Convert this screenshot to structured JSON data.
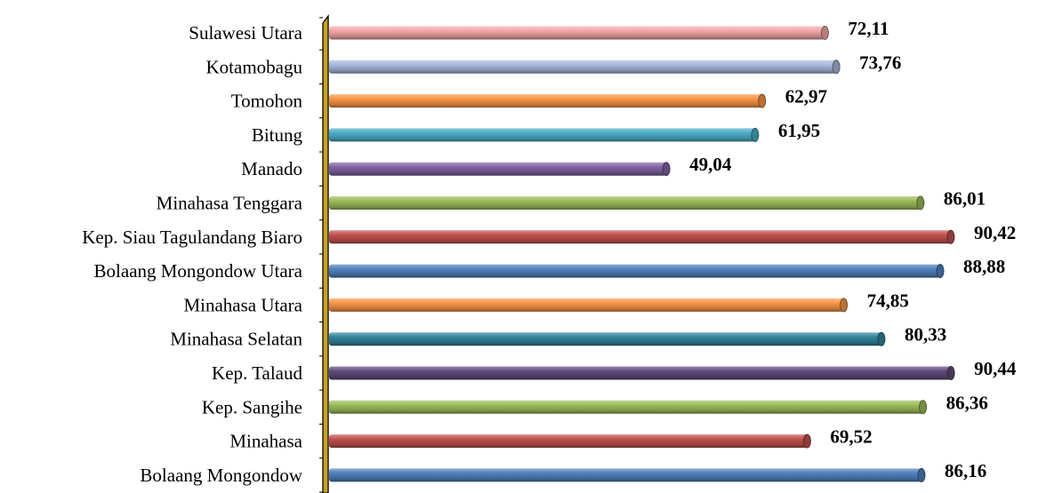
{
  "chart_data": {
    "type": "bar",
    "orientation": "horizontal",
    "categories": [
      "Sulawesi Utara",
      "Kotamobagu",
      "Tomohon",
      "Bitung",
      "Manado",
      "Minahasa Tenggara",
      "Kep. Siau Tagulandang Biaro",
      "Bolaang Mongondow Utara",
      "Minahasa Utara",
      "Minahasa Selatan",
      "Kep. Talaud",
      "Kep. Sangihe",
      "Minahasa",
      "Bolaang Mongondow"
    ],
    "values": [
      72.11,
      73.76,
      62.97,
      61.95,
      49.04,
      86.01,
      90.42,
      88.88,
      74.85,
      80.33,
      90.44,
      86.36,
      69.52,
      86.16
    ],
    "value_labels": [
      "72,11",
      "73,76",
      "62,97",
      "61,95",
      "49,04",
      "86,01",
      "90,42",
      "88,88",
      "74,85",
      "80,33",
      "90,44",
      "86,36",
      "69,52",
      "86,16"
    ],
    "colors": [
      "#f2a6a6",
      "#a7b8dd",
      "#f79646",
      "#4bacc6",
      "#8064a2",
      "#9bbb59",
      "#c0504d",
      "#4f81bd",
      "#f79646",
      "#31849b",
      "#604a7b",
      "#9bbb59",
      "#c0504d",
      "#4f81bd"
    ],
    "xlim": [
      0,
      100
    ],
    "title": "",
    "xlabel": "",
    "ylabel": "",
    "grid": false,
    "legend": "none"
  },
  "style": {
    "axis_wall_color": "#c9a227",
    "axis_wall_dark": "#8a6b0e"
  }
}
